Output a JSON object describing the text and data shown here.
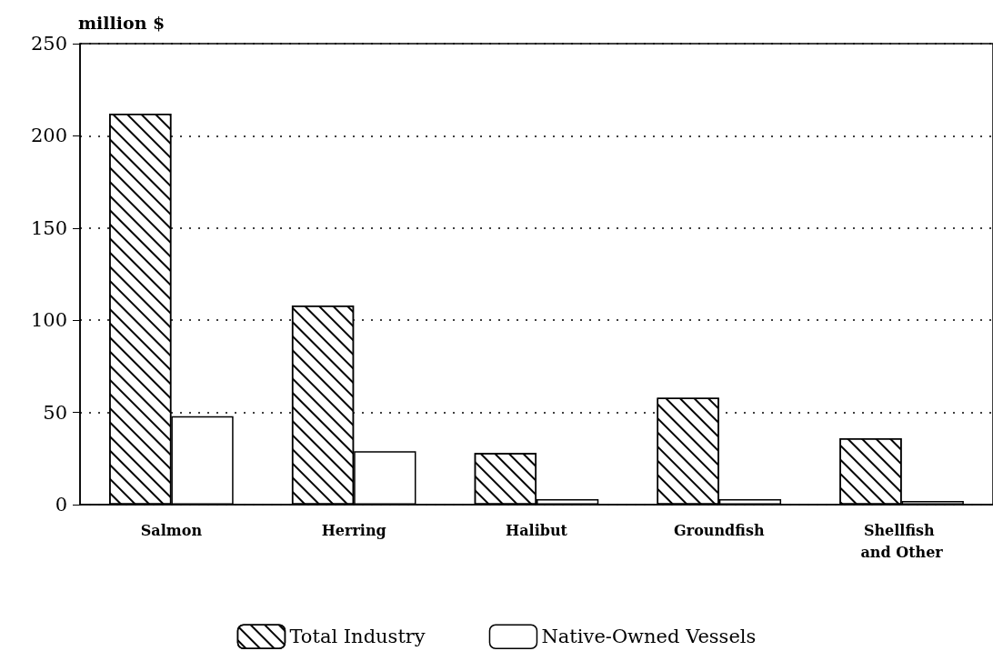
{
  "chart_data": {
    "type": "bar",
    "ylabel": "million $",
    "categories": [
      "Salmon",
      "Herring",
      "Halibut",
      "Groundfish",
      "Shellfish and Other"
    ],
    "series": [
      {
        "name": "Total Industry",
        "color": "#ffffff",
        "values": [
          212,
          108,
          28,
          58,
          36
        ]
      },
      {
        "name": "Native-Owned Vessels",
        "color": "#ffffff",
        "values": [
          48,
          29,
          3,
          3,
          2
        ]
      }
    ],
    "ylim": [
      0,
      250
    ],
    "yticks": [
      0,
      50,
      100,
      150,
      200,
      250
    ],
    "grid": "y",
    "legend": "bottom"
  }
}
